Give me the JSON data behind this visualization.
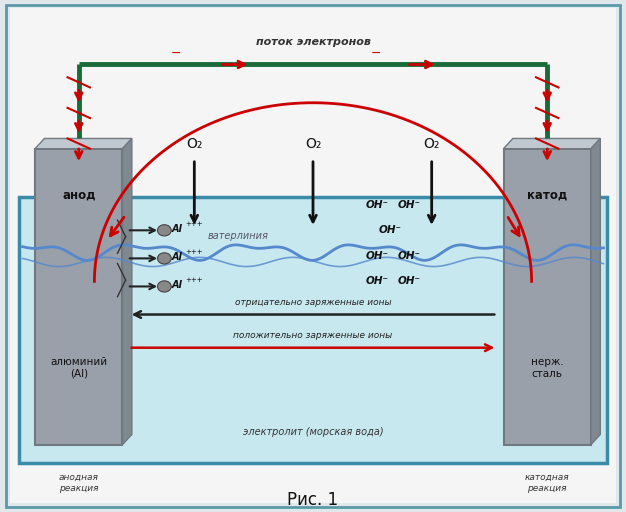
{
  "title": "Рис. 1",
  "bg_outer": "#e0e8ec",
  "bg_inner": "#f0f0f0",
  "outer_border_color": "#5a9aaa",
  "wire_color": "#1a6b3a",
  "electron_arrow_color": "#cc0000",
  "ion_arrow_color_neg": "#333333",
  "ion_arrow_color_pos": "#cc0000",
  "current_arc_color": "#cc0000",
  "water_color": "#5588cc",
  "anode_color": "#9aa0aa",
  "cathode_color": "#9aa0aa",
  "tank_fill": "#c8e8f0",
  "tank_border_color": "#3a8aaa",
  "electrode_edge": "#707880",
  "label_anode": "анод",
  "label_cathode": "катод",
  "label_anode_material": "алюминий\n(Al)",
  "label_cathode_material": "нерж.\nсталь",
  "label_anode_reaction": "анодная\nреакция",
  "label_cathode_reaction": "катодная\nреакция",
  "label_electron_flow": "поток электронов",
  "label_waterline": "ватерлиния",
  "label_electrolyte": "электролит (морская вода)",
  "label_neg_ions": "отрицательно заряженные ионы",
  "label_pos_ions": "положительно заряженные ионы",
  "figsize": [
    6.26,
    5.12
  ],
  "dpi": 100
}
